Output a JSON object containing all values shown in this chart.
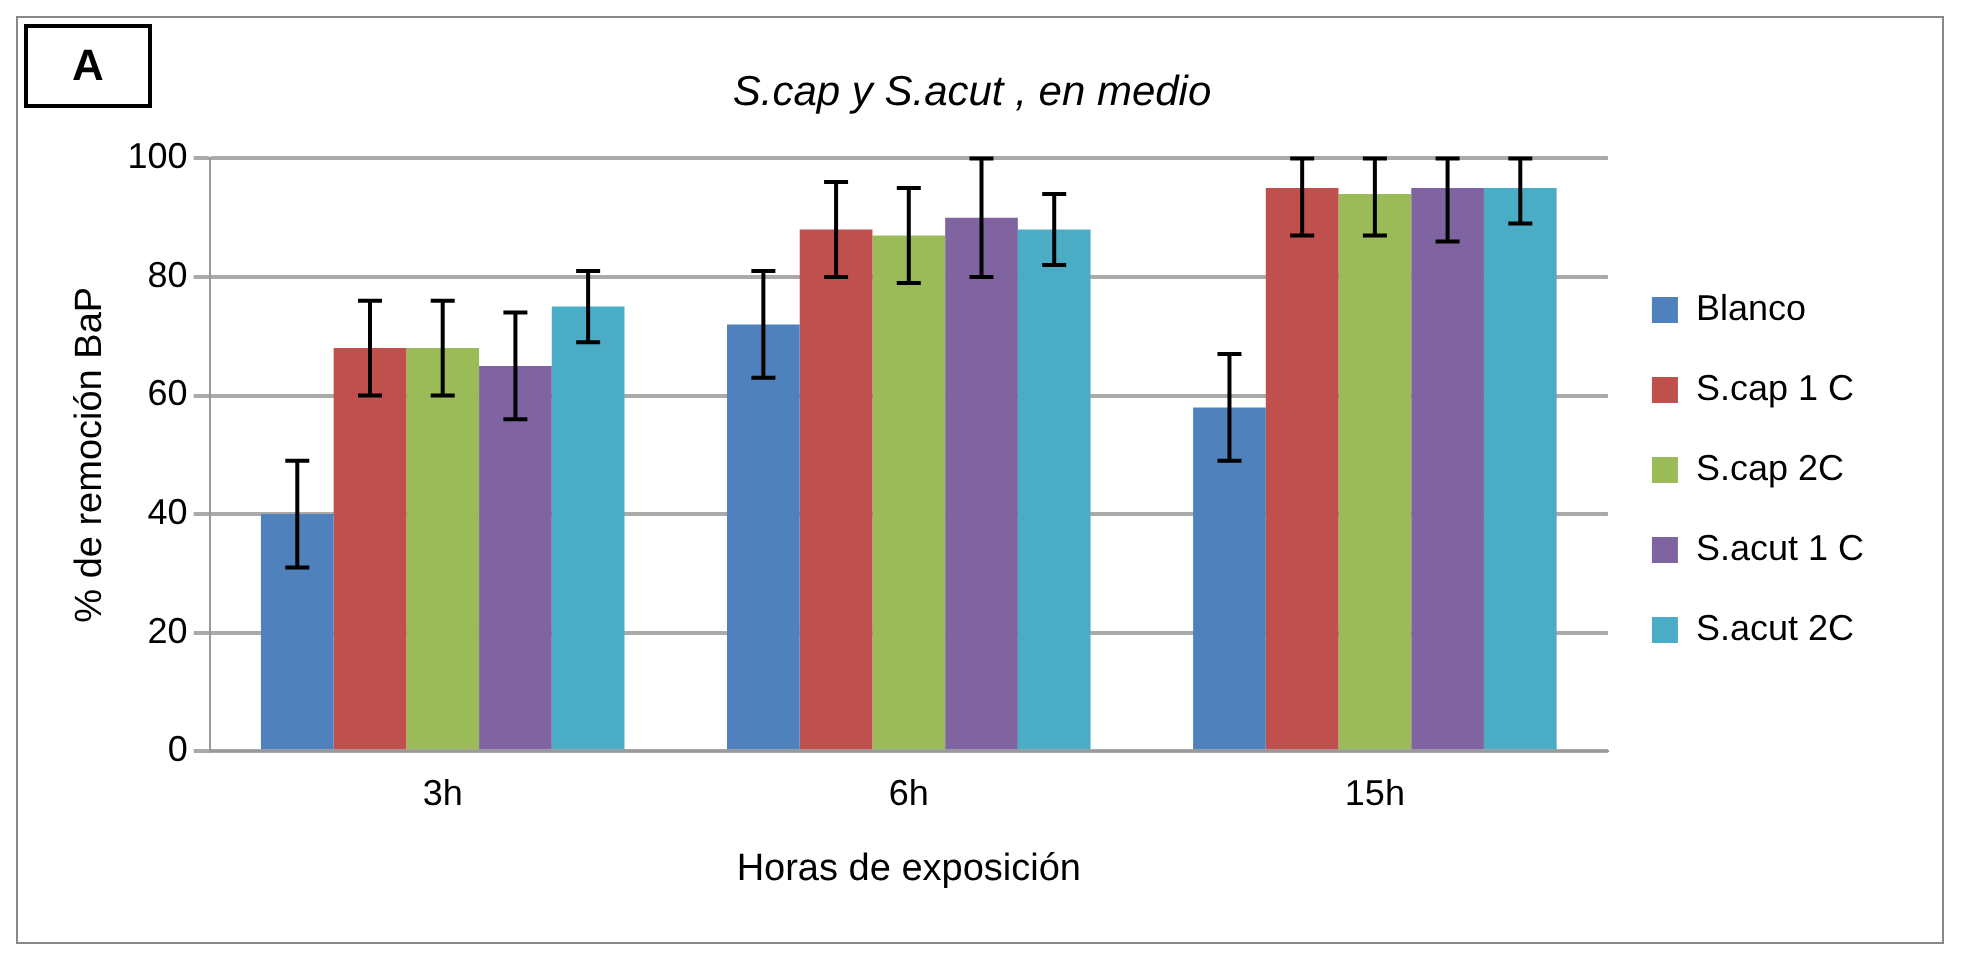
{
  "chart_data": {
    "type": "bar",
    "title": "S.cap y S.acut , en medio",
    "xlabel": "Horas de exposición",
    "ylabel": "% de remoción BaP",
    "annotations": [
      "A"
    ],
    "categories": [
      "3h",
      "6h",
      "15h"
    ],
    "series": [
      {
        "name": "Blanco",
        "color": "#4f81bd",
        "values": [
          40,
          72,
          58
        ],
        "errors": [
          9,
          9,
          9
        ]
      },
      {
        "name": "S.cap 1 C",
        "color": "#c0504d",
        "values": [
          68,
          88,
          95
        ],
        "errors": [
          8,
          8,
          [
            87,
            100
          ]
        ]
      },
      {
        "name": "S.cap 2C",
        "color": "#9bbb59",
        "values": [
          68,
          87,
          94
        ],
        "errors": [
          8,
          8,
          [
            87,
            100
          ]
        ]
      },
      {
        "name": "S.acut 1 C",
        "color": "#8064a2",
        "values": [
          65,
          90,
          95
        ],
        "errors": [
          9,
          10,
          [
            86,
            100
          ]
        ]
      },
      {
        "name": "S.acut 2C",
        "color": "#4bacc6",
        "values": [
          75,
          88,
          95
        ],
        "errors": [
          6,
          6,
          [
            89,
            100
          ]
        ]
      }
    ],
    "ylim": [
      0,
      100
    ],
    "yticks": [
      0,
      20,
      40,
      60,
      80,
      100
    ],
    "grid": "y",
    "legend": "right"
  }
}
